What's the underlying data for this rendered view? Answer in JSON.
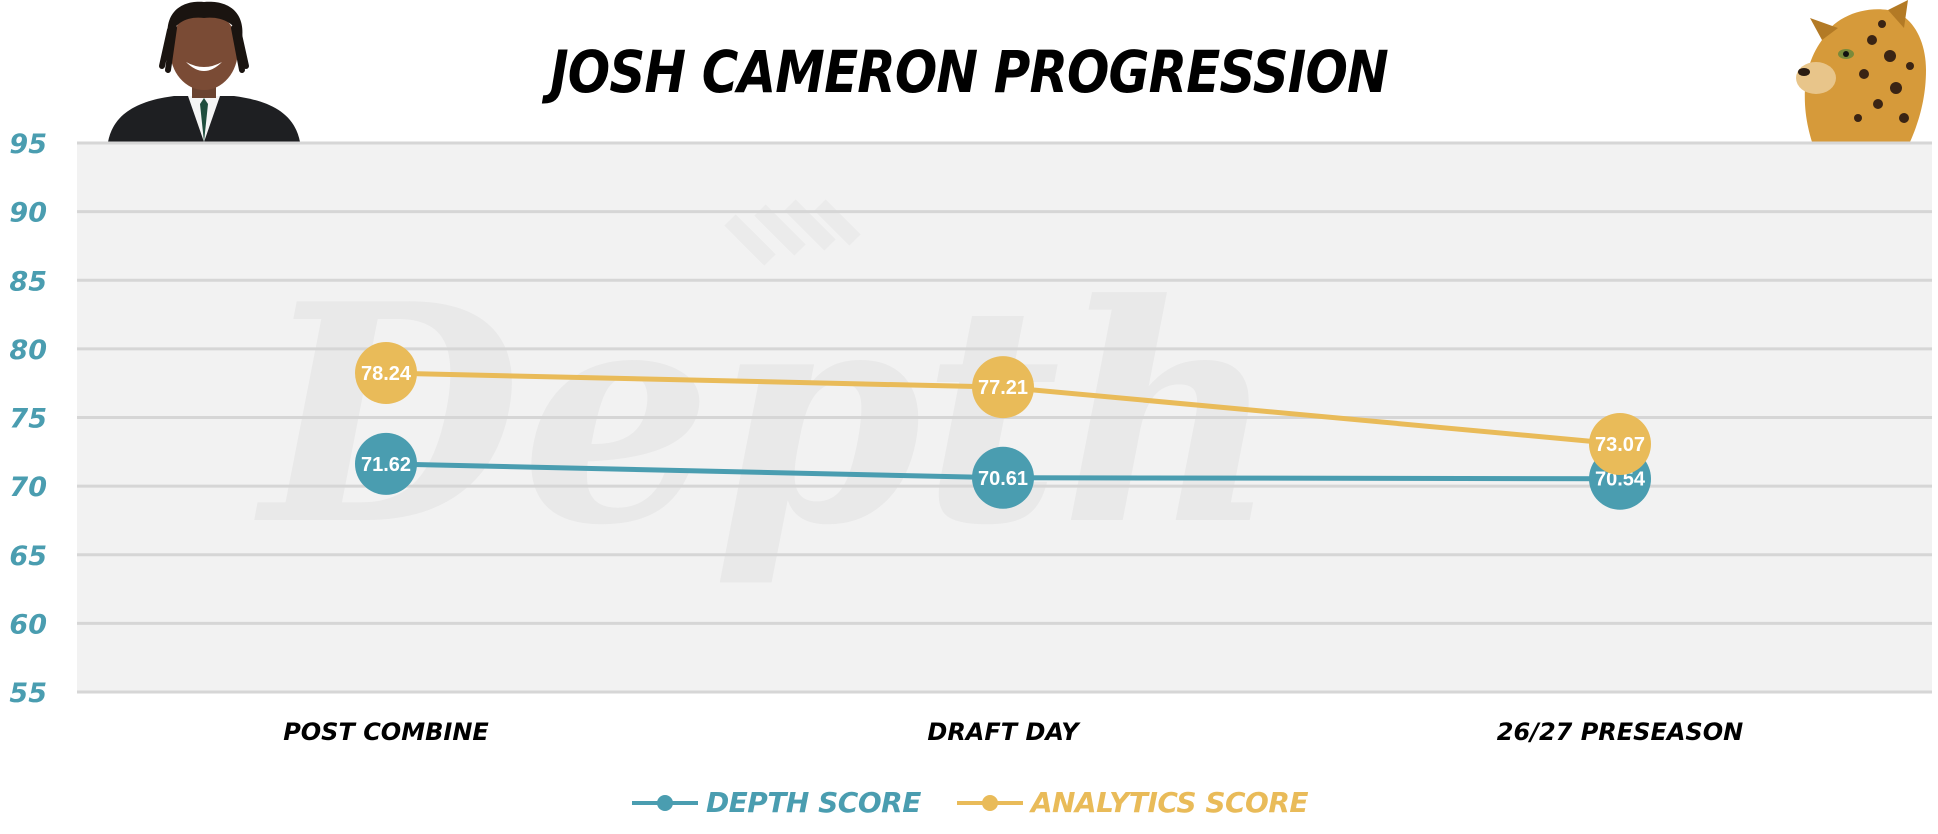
{
  "header": {
    "title": "JOSH CAMERON PROGRESSION"
  },
  "colors": {
    "depth": "#4a9db0",
    "analytics": "#e9bb59",
    "plot_bg": "#f2f2f2",
    "grid": "#d6d6d6"
  },
  "watermark": "Depth",
  "chart_data": {
    "type": "line",
    "title": "JOSH CAMERON PROGRESSION",
    "xlabel": "",
    "ylabel": "",
    "categories": [
      "POST COMBINE",
      "DRAFT DAY",
      "26/27 PRESEASON"
    ],
    "ylim": [
      55,
      95
    ],
    "yticks": [
      95,
      90,
      85,
      80,
      75,
      70,
      65,
      60,
      55
    ],
    "grid": true,
    "legend_position": "bottom-center",
    "series": [
      {
        "name": "DEPTH SCORE",
        "color": "#4a9db0",
        "values": [
          71.62,
          70.61,
          70.54
        ],
        "labels": [
          "71.62",
          "70.61",
          "70.54"
        ]
      },
      {
        "name": "ANALYTICS SCORE",
        "color": "#e9bb59",
        "values": [
          78.24,
          77.21,
          73.07
        ],
        "labels": [
          "78.24",
          "77.21",
          "73.07"
        ]
      }
    ]
  }
}
